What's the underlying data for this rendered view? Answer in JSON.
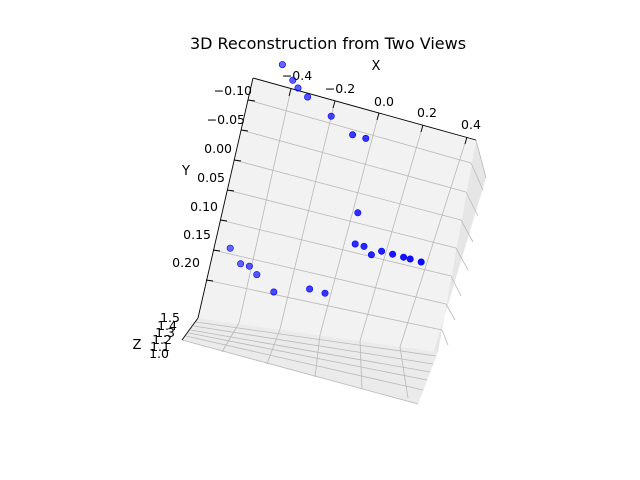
{
  "chart_data": {
    "type": "scatter",
    "title": "3D Reconstruction from Two Views",
    "xlabel": "X",
    "ylabel": "Y",
    "zlabel": "Z",
    "x_ticks": [
      "−0.4",
      "−0.2",
      "0.0",
      "0.2",
      "0.4"
    ],
    "y_ticks": [
      "−0.10",
      "−0.05",
      "0.00",
      "0.05",
      "0.10",
      "0.15",
      "0.20"
    ],
    "z_ticks": [
      "1.5",
      "1.4",
      "1.3",
      "1.2",
      "1.1",
      "1.0"
    ],
    "marker_color": "#0000ff",
    "points": [
      {
        "x": -0.49,
        "y": -0.08,
        "z": 1.2
      },
      {
        "x": -0.43,
        "y": -0.06,
        "z": 1.2
      },
      {
        "x": -0.4,
        "y": -0.05,
        "z": 1.2
      },
      {
        "x": -0.35,
        "y": -0.04,
        "z": 1.2
      },
      {
        "x": -0.23,
        "y": -0.02,
        "z": 1.2
      },
      {
        "x": -0.12,
        "y": 0.0,
        "z": 1.2
      },
      {
        "x": -0.06,
        "y": 0.0,
        "z": 1.2
      },
      {
        "x": -0.02,
        "y": 0.12,
        "z": 1.2
      },
      {
        "x": 0.0,
        "y": 0.17,
        "z": 1.2
      },
      {
        "x": 0.04,
        "y": 0.17,
        "z": 1.2
      },
      {
        "x": 0.08,
        "y": 0.18,
        "z": 1.2
      },
      {
        "x": 0.12,
        "y": 0.17,
        "z": 1.2
      },
      {
        "x": 0.17,
        "y": 0.17,
        "z": 1.2
      },
      {
        "x": 0.22,
        "y": 0.17,
        "z": 1.2
      },
      {
        "x": 0.25,
        "y": 0.17,
        "z": 1.2
      },
      {
        "x": 0.3,
        "y": 0.17,
        "z": 1.2
      },
      {
        "x": -0.53,
        "y": 0.23,
        "z": 1.2
      },
      {
        "x": -0.47,
        "y": 0.25,
        "z": 1.2
      },
      {
        "x": -0.43,
        "y": 0.25,
        "z": 1.2
      },
      {
        "x": -0.39,
        "y": 0.26,
        "z": 1.2
      },
      {
        "x": -0.3,
        "y": 0.28,
        "z": 1.2
      },
      {
        "x": -0.15,
        "y": 0.26,
        "z": 1.2
      },
      {
        "x": -0.08,
        "y": 0.26,
        "z": 1.2
      }
    ],
    "grid": true
  }
}
